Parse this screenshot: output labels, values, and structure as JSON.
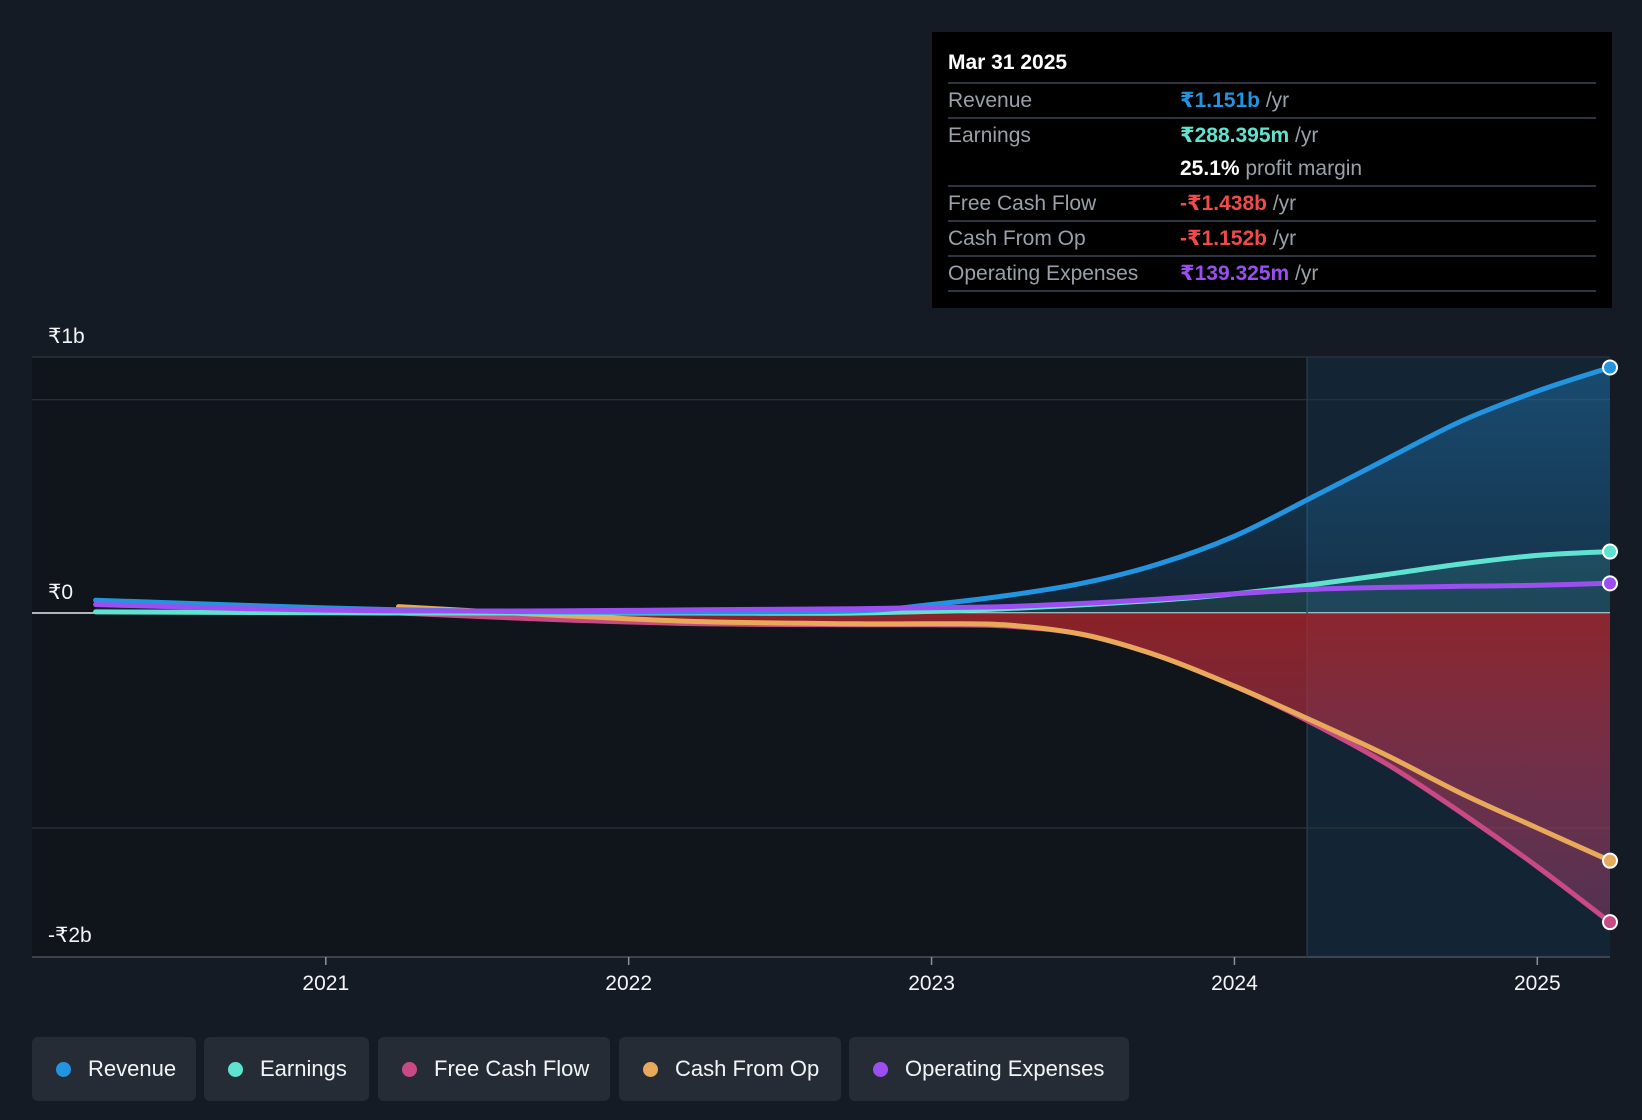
{
  "colors": {
    "revenue": "#2394df",
    "earnings": "#5fe3d0",
    "free_cash_flow": "#c74a85",
    "cash_from_op": "#e8a95b",
    "operating_expenses": "#9b4ff0",
    "negative_text": "#f04a4a",
    "background": "#151b24"
  },
  "tooltip": {
    "date": "Mar 31 2025",
    "rows": [
      {
        "label": "Revenue",
        "value": "₹1.151b",
        "unit": " /yr"
      },
      {
        "label": "Earnings",
        "value": "₹288.395m",
        "unit": " /yr"
      },
      {
        "label": "",
        "value": "25.1%",
        "unit": " profit margin"
      },
      {
        "label": "Free Cash Flow",
        "value": "-₹1.438b",
        "unit": " /yr"
      },
      {
        "label": "Cash From Op",
        "value": "-₹1.152b",
        "unit": " /yr"
      },
      {
        "label": "Operating Expenses",
        "value": "₹139.325m",
        "unit": " /yr"
      }
    ]
  },
  "legend": [
    {
      "label": "Revenue",
      "key": "revenue"
    },
    {
      "label": "Earnings",
      "key": "earnings"
    },
    {
      "label": "Free Cash Flow",
      "key": "free_cash_flow"
    },
    {
      "label": "Cash From Op",
      "key": "cash_from_op"
    },
    {
      "label": "Operating Expenses",
      "key": "operating_expenses"
    }
  ],
  "chart_data": {
    "type": "line",
    "title": "",
    "y_unit": "₹ billions",
    "ylim": [
      -1.6,
      1.2
    ],
    "y_tick_labels": [
      {
        "value": 1.2,
        "label": "₹1b"
      },
      {
        "value": 0.0,
        "label": "₹0"
      },
      {
        "value": -1.6,
        "label": "-₹2b"
      }
    ],
    "x_ticks": [
      2021,
      2022,
      2023,
      2024,
      2025
    ],
    "xlim": [
      2020.03,
      2025.24
    ],
    "forecast_start": 2024.24,
    "series": [
      {
        "name": "Revenue",
        "key": "revenue",
        "x": [
          2020.24,
          2020.75,
          2021.24,
          2021.75,
          2022.24,
          2022.75,
          2023.0,
          2023.24,
          2023.5,
          2023.75,
          2024.0,
          2024.24,
          2024.5,
          2024.75,
          2025.0,
          2025.24
        ],
        "y": [
          0.06,
          0.035,
          0.015,
          0.005,
          0.005,
          0.01,
          0.04,
          0.08,
          0.14,
          0.23,
          0.36,
          0.53,
          0.72,
          0.9,
          1.04,
          1.151
        ]
      },
      {
        "name": "Earnings",
        "key": "earnings",
        "x": [
          2020.24,
          2021.24,
          2021.75,
          2022.24,
          2022.75,
          2023.24,
          2023.75,
          2024.0,
          2024.24,
          2024.5,
          2024.75,
          2025.0,
          2025.24
        ],
        "y": [
          0.005,
          0.0,
          0.0,
          0.0,
          0.0,
          0.02,
          0.06,
          0.09,
          0.13,
          0.18,
          0.23,
          0.27,
          0.288
        ]
      },
      {
        "name": "Free Cash Flow",
        "key": "free_cash_flow",
        "x": [
          2021.24,
          2021.75,
          2022.24,
          2022.75,
          2023.0,
          2023.24,
          2023.5,
          2023.75,
          2024.0,
          2024.24,
          2024.5,
          2024.75,
          2025.0,
          2025.24
        ],
        "y": [
          0.0,
          -0.03,
          -0.05,
          -0.055,
          -0.055,
          -0.06,
          -0.1,
          -0.2,
          -0.34,
          -0.5,
          -0.7,
          -0.93,
          -1.18,
          -1.438
        ]
      },
      {
        "name": "Cash From Op",
        "key": "cash_from_op",
        "x": [
          2021.24,
          2021.75,
          2022.24,
          2022.75,
          2023.0,
          2023.24,
          2023.5,
          2023.75,
          2024.0,
          2024.24,
          2024.5,
          2024.75,
          2025.0,
          2025.24
        ],
        "y": [
          0.03,
          -0.01,
          -0.04,
          -0.05,
          -0.05,
          -0.055,
          -0.1,
          -0.2,
          -0.34,
          -0.49,
          -0.66,
          -0.84,
          -1.0,
          -1.152
        ]
      },
      {
        "name": "Operating Expenses",
        "key": "operating_expenses",
        "x": [
          2020.24,
          2020.75,
          2021.24,
          2021.75,
          2022.24,
          2022.75,
          2023.0,
          2023.24,
          2023.5,
          2023.75,
          2024.0,
          2024.24,
          2024.5,
          2024.75,
          2025.0,
          2025.24
        ],
        "y": [
          0.04,
          0.02,
          0.01,
          0.01,
          0.015,
          0.02,
          0.025,
          0.03,
          0.045,
          0.065,
          0.09,
          0.11,
          0.12,
          0.125,
          0.13,
          0.139
        ]
      }
    ]
  }
}
